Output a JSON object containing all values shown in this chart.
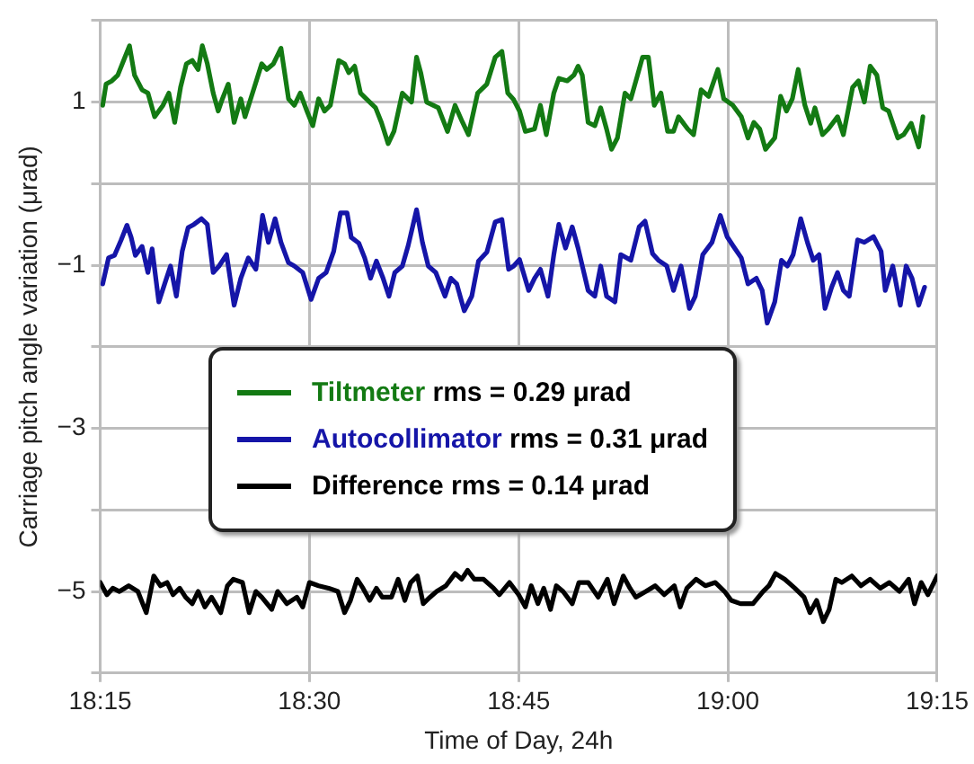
{
  "chart_data": {
    "type": "line",
    "xlabel": "Time of Day, 24h",
    "ylabel": "Carriage pitch angle variation (μrad)",
    "xlim": [
      18.25,
      19.25
    ],
    "xticks": [
      {
        "value": 18.25,
        "label": "18:15"
      },
      {
        "value": 18.5,
        "label": "18:30"
      },
      {
        "value": 18.75,
        "label": "18:45"
      },
      {
        "value": 19,
        "label": "19:00"
      },
      {
        "value": 19.25,
        "label": "19:15"
      }
    ],
    "ylim": [
      -6,
      2
    ],
    "yticks": [
      {
        "value": -6,
        "label": null
      },
      {
        "value": -5,
        "label": "−5"
      },
      {
        "value": -4,
        "label": null
      },
      {
        "value": -3,
        "label": "−3"
      },
      {
        "value": -2,
        "label": null
      },
      {
        "value": -1,
        "label": "−1"
      },
      {
        "value": 0,
        "label": null
      },
      {
        "value": 1,
        "label": "1"
      },
      {
        "value": 2,
        "label": null
      }
    ],
    "grid": true,
    "legend": "center",
    "marker": "none",
    "line_style": "solid",
    "series": [
      {
        "name": "Tiltmeter rms = 0.29 μrad",
        "color": "#137a13",
        "x": [
          18.253,
          18.257,
          18.264,
          18.271,
          18.278,
          18.285,
          18.291,
          18.3,
          18.307,
          18.315,
          18.325,
          18.332,
          18.339,
          18.346,
          18.353,
          18.36,
          18.367,
          18.372,
          18.378,
          18.385,
          18.391,
          18.396,
          18.403,
          18.41,
          18.418,
          18.423,
          18.432,
          18.443,
          18.449,
          18.457,
          18.466,
          18.475,
          18.482,
          18.489,
          18.497,
          18.504,
          18.511,
          18.518,
          18.525,
          18.535,
          18.542,
          18.547,
          18.554,
          18.561,
          18.572,
          18.579,
          18.586,
          18.594,
          18.601,
          18.611,
          18.622,
          18.628,
          18.633,
          18.64,
          18.654,
          18.665,
          18.674,
          18.683,
          18.69,
          18.701,
          18.712,
          18.722,
          18.73,
          18.737,
          18.744,
          18.751,
          18.758,
          18.769,
          18.776,
          18.783,
          18.792,
          18.798,
          18.808,
          18.816,
          18.821,
          18.826,
          18.833,
          18.841,
          18.848,
          18.855,
          18.861,
          18.868,
          18.877,
          18.884,
          18.892,
          18.898,
          18.905,
          18.912,
          18.92,
          18.928,
          18.935,
          18.941,
          18.952,
          18.959,
          18.968,
          18.977,
          18.988,
          18.995,
          19.006,
          19.016,
          19.024,
          19.031,
          19.038,
          19.045,
          19.056,
          19.063,
          19.07,
          19.077,
          19.084,
          19.092,
          19.099,
          19.104,
          19.113,
          19.12,
          19.131,
          19.138,
          19.149,
          19.156,
          19.163,
          19.17,
          19.178,
          19.185,
          19.192,
          19.203,
          19.21,
          19.219,
          19.228,
          19.233
        ],
        "values": [
          0.96,
          1.22,
          1.26,
          1.33,
          1.51,
          1.69,
          1.33,
          1.15,
          1.11,
          0.82,
          0.96,
          1.11,
          0.75,
          1.18,
          1.47,
          1.51,
          1.4,
          1.69,
          1.47,
          1.11,
          0.89,
          1.04,
          1.22,
          0.75,
          1.04,
          0.82,
          1.11,
          1.47,
          1.4,
          1.47,
          1.66,
          1.04,
          0.96,
          1.11,
          0.89,
          0.71,
          1.04,
          0.89,
          0.96,
          1.51,
          1.47,
          1.36,
          1.44,
          1.11,
          1.0,
          0.93,
          0.75,
          0.49,
          0.64,
          1.11,
          1.0,
          1.55,
          1.36,
          1.0,
          0.93,
          0.64,
          0.96,
          0.75,
          0.6,
          1.11,
          1.22,
          1.55,
          1.62,
          1.11,
          1.03,
          0.89,
          0.64,
          0.67,
          0.96,
          0.6,
          1.11,
          1.29,
          1.26,
          1.33,
          1.44,
          1.33,
          0.75,
          0.71,
          0.93,
          0.67,
          0.42,
          0.56,
          1.11,
          1.04,
          1.33,
          1.55,
          1.55,
          0.96,
          1.11,
          0.64,
          0.64,
          0.82,
          0.67,
          0.6,
          1.15,
          1.07,
          1.4,
          1.04,
          0.96,
          0.82,
          0.56,
          0.75,
          0.67,
          0.42,
          0.56,
          1.07,
          0.89,
          1.04,
          1.4,
          0.96,
          0.74,
          0.93,
          0.6,
          0.67,
          0.82,
          0.6,
          1.18,
          1.26,
          1.0,
          1.44,
          1.33,
          0.93,
          0.89,
          0.56,
          0.6,
          0.74,
          0.45,
          0.82
        ]
      },
      {
        "name": "Autocollimator rms = 0.31 μrad",
        "color": "#1515a8",
        "x": [
          18.253,
          18.26,
          18.267,
          18.275,
          18.282,
          18.287,
          18.292,
          18.3,
          18.307,
          18.312,
          18.32,
          18.327,
          18.334,
          18.341,
          18.348,
          18.355,
          18.362,
          18.371,
          18.378,
          18.385,
          18.392,
          18.401,
          18.41,
          18.418,
          18.427,
          18.436,
          18.444,
          18.451,
          18.459,
          18.466,
          18.475,
          18.482,
          18.492,
          18.502,
          18.511,
          18.52,
          18.529,
          18.537,
          18.545,
          18.55,
          18.559,
          18.566,
          18.573,
          18.58,
          18.588,
          18.595,
          18.602,
          18.611,
          18.618,
          18.628,
          18.635,
          18.642,
          18.651,
          18.662,
          18.669,
          18.676,
          18.685,
          18.694,
          18.702,
          18.712,
          18.722,
          18.73,
          18.738,
          18.744,
          18.751,
          18.762,
          18.769,
          18.776,
          18.785,
          18.792,
          18.798,
          18.806,
          18.814,
          18.821,
          18.833,
          18.841,
          18.848,
          18.855,
          18.865,
          18.872,
          18.884,
          18.894,
          18.901,
          18.91,
          18.917,
          18.927,
          18.935,
          18.944,
          18.954,
          18.961,
          18.97,
          18.981,
          18.991,
          18.999,
          19.006,
          19.016,
          19.024,
          19.034,
          19.041,
          19.047,
          19.056,
          19.064,
          19.071,
          19.078,
          19.087,
          19.095,
          19.102,
          19.109,
          19.116,
          19.124,
          19.131,
          19.138,
          19.145,
          19.155,
          19.163,
          19.174,
          19.183,
          19.188,
          19.197,
          19.206,
          19.213,
          19.22,
          19.228,
          19.235
        ],
        "values": [
          -1.23,
          -0.91,
          -0.88,
          -0.69,
          -0.51,
          -0.66,
          -0.88,
          -0.77,
          -1.09,
          -0.8,
          -1.45,
          -1.23,
          -1.01,
          -1.38,
          -0.83,
          -0.54,
          -0.5,
          -0.43,
          -0.5,
          -1.09,
          -1.01,
          -0.87,
          -1.49,
          -1.16,
          -0.91,
          -1.05,
          -0.39,
          -0.72,
          -0.43,
          -0.72,
          -0.97,
          -1.01,
          -1.09,
          -1.42,
          -1.16,
          -1.09,
          -0.83,
          -0.36,
          -0.36,
          -0.66,
          -0.73,
          -0.91,
          -1.16,
          -0.95,
          -1.16,
          -1.38,
          -1.09,
          -1.01,
          -0.76,
          -0.32,
          -0.72,
          -1.01,
          -1.09,
          -1.38,
          -1.16,
          -1.23,
          -1.56,
          -1.38,
          -0.95,
          -0.84,
          -0.47,
          -0.44,
          -1.05,
          -1.01,
          -0.93,
          -1.31,
          -1.16,
          -1.05,
          -1.38,
          -0.87,
          -0.5,
          -0.79,
          -0.53,
          -0.79,
          -1.31,
          -1.38,
          -1.01,
          -1.38,
          -1.45,
          -0.87,
          -0.94,
          -0.53,
          -0.46,
          -0.86,
          -0.94,
          -1.01,
          -1.31,
          -1.01,
          -1.53,
          -1.38,
          -0.87,
          -0.72,
          -0.39,
          -0.65,
          -0.76,
          -0.91,
          -1.23,
          -1.16,
          -1.31,
          -1.71,
          -1.45,
          -0.94,
          -1.01,
          -0.87,
          -0.43,
          -0.72,
          -0.94,
          -0.87,
          -1.53,
          -1.27,
          -1.09,
          -1.31,
          -1.38,
          -0.69,
          -0.72,
          -0.65,
          -0.83,
          -1.31,
          -1.01,
          -1.49,
          -1.01,
          -1.16,
          -1.49,
          -1.27
        ]
      },
      {
        "name": "Difference rms = 0.14 μrad",
        "color": "#000000",
        "x": [
          18.25,
          18.258,
          18.265,
          18.273,
          18.284,
          18.295,
          18.305,
          18.314,
          18.322,
          18.33,
          18.337,
          18.345,
          18.352,
          18.36,
          18.367,
          18.375,
          18.383,
          18.394,
          18.402,
          18.409,
          18.42,
          18.428,
          18.436,
          18.443,
          18.455,
          18.462,
          18.473,
          18.485,
          18.492,
          18.5,
          18.511,
          18.523,
          18.534,
          18.542,
          18.549,
          18.557,
          18.564,
          18.572,
          18.58,
          18.587,
          18.598,
          18.606,
          18.614,
          18.621,
          18.629,
          18.636,
          18.644,
          18.652,
          18.663,
          18.674,
          18.682,
          18.689,
          18.697,
          18.708,
          18.72,
          18.727,
          18.739,
          18.75,
          18.758,
          18.765,
          18.773,
          18.78,
          18.788,
          18.795,
          18.803,
          18.814,
          18.822,
          18.833,
          18.845,
          18.856,
          18.864,
          18.875,
          18.883,
          18.89,
          18.902,
          18.913,
          18.924,
          18.936,
          18.943,
          18.951,
          18.962,
          18.973,
          18.985,
          18.996,
          19.004,
          19.015,
          19.03,
          19.042,
          19.049,
          19.057,
          19.068,
          19.08,
          19.091,
          19.098,
          19.106,
          19.114,
          19.121,
          19.129,
          19.136,
          19.148,
          19.159,
          19.17,
          19.182,
          19.193,
          19.205,
          19.216,
          19.223,
          19.231,
          19.239,
          19.25
        ],
        "values": [
          -4.89,
          -5.04,
          -4.96,
          -5.0,
          -4.93,
          -5.0,
          -5.26,
          -4.81,
          -4.93,
          -4.89,
          -5.04,
          -4.96,
          -5.07,
          -5.15,
          -5.0,
          -5.19,
          -5.07,
          -5.26,
          -4.93,
          -4.85,
          -4.89,
          -5.26,
          -5.0,
          -5.07,
          -5.22,
          -5.0,
          -5.15,
          -5.07,
          -5.19,
          -4.89,
          -4.93,
          -4.96,
          -5.0,
          -5.26,
          -5.11,
          -4.85,
          -4.96,
          -5.11,
          -4.96,
          -5.07,
          -5.07,
          -4.85,
          -5.11,
          -4.89,
          -4.81,
          -5.15,
          -5.07,
          -5.0,
          -4.93,
          -4.78,
          -4.85,
          -4.74,
          -4.85,
          -4.85,
          -4.96,
          -5.04,
          -4.89,
          -5.04,
          -5.19,
          -4.93,
          -5.15,
          -4.96,
          -5.22,
          -4.93,
          -5.0,
          -5.15,
          -4.89,
          -4.89,
          -5.07,
          -4.85,
          -5.15,
          -4.81,
          -4.96,
          -5.07,
          -5.0,
          -4.93,
          -5.04,
          -4.93,
          -5.19,
          -4.96,
          -4.85,
          -4.93,
          -4.89,
          -5.0,
          -5.11,
          -5.15,
          -5.15,
          -5.0,
          -4.93,
          -4.78,
          -4.85,
          -4.96,
          -5.07,
          -5.26,
          -5.11,
          -5.37,
          -5.22,
          -4.85,
          -4.89,
          -4.81,
          -4.93,
          -4.85,
          -4.96,
          -4.89,
          -5.0,
          -4.85,
          -5.15,
          -4.89,
          -5.04,
          -4.81
        ]
      }
    ]
  }
}
